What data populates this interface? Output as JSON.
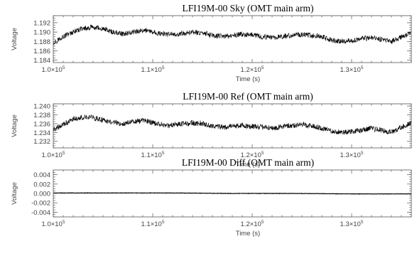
{
  "chart_data": [
    {
      "type": "line",
      "title": "LFI19M-00 Sky (OMT main arm)",
      "xlabel": "Time (s)",
      "ylabel": "Voltage",
      "xlim": [
        100000,
        136000
      ],
      "ylim": [
        1.1835,
        1.1935
      ],
      "x_ticks": [
        100000,
        110000,
        120000,
        130000
      ],
      "x_tick_labels": [
        {
          "mant": "1.0×10",
          "exp": "5"
        },
        {
          "mant": "1.1×10",
          "exp": "5"
        },
        {
          "mant": "1.2×10",
          "exp": "5"
        },
        {
          "mant": "1.3×10",
          "exp": "5"
        }
      ],
      "y_ticks": [
        1.184,
        1.186,
        1.188,
        1.19,
        1.192
      ],
      "y_tick_labels": [
        "1.184",
        "1.186",
        "1.188",
        "1.190",
        "1.192"
      ],
      "series": [
        {
          "x": [
            100000,
            101000,
            102000,
            103000,
            104000,
            105000,
            106000,
            107000,
            108000,
            109000,
            110000,
            111000,
            112000,
            113000,
            114000,
            115000,
            116000,
            117000,
            118000,
            119000,
            120000,
            121000,
            122000,
            123000,
            124000,
            125000,
            126000,
            127000,
            128000,
            129000,
            130000,
            131000,
            132000,
            133000,
            134000,
            135000,
            136000
          ],
          "y": [
            1.1878,
            1.189,
            1.19,
            1.1907,
            1.191,
            1.1906,
            1.19,
            1.1896,
            1.19,
            1.1904,
            1.19,
            1.1896,
            1.1894,
            1.1897,
            1.19,
            1.1898,
            1.1893,
            1.189,
            1.1893,
            1.1895,
            1.1893,
            1.189,
            1.1888,
            1.1891,
            1.1893,
            1.1895,
            1.1893,
            1.1889,
            1.1883,
            1.188,
            1.1882,
            1.1886,
            1.1889,
            1.1885,
            1.188,
            1.189,
            1.1898
          ],
          "noise": 0.0011
        }
      ]
    },
    {
      "type": "line",
      "title": "LFI19M-00 Ref (OMT main arm)",
      "xlabel": "Time (s)",
      "ylabel": "Voltage",
      "xlim": [
        100000,
        136000
      ],
      "ylim": [
        1.2305,
        1.2405
      ],
      "x_ticks": [
        100000,
        110000,
        120000,
        130000
      ],
      "x_tick_labels": [
        {
          "mant": "1.0×10",
          "exp": "5"
        },
        {
          "mant": "1.1×10",
          "exp": "5"
        },
        {
          "mant": "1.2×10",
          "exp": "5"
        },
        {
          "mant": "1.3×10",
          "exp": "5"
        }
      ],
      "y_ticks": [
        1.232,
        1.234,
        1.236,
        1.238,
        1.24
      ],
      "y_tick_labels": [
        "1.232",
        "1.234",
        "1.236",
        "1.238",
        "1.240"
      ],
      "series": [
        {
          "x": [
            100000,
            101000,
            102000,
            103000,
            104000,
            105000,
            106000,
            107000,
            108000,
            109000,
            110000,
            111000,
            112000,
            113000,
            114000,
            115000,
            116000,
            117000,
            118000,
            119000,
            120000,
            121000,
            122000,
            123000,
            124000,
            125000,
            126000,
            127000,
            128000,
            129000,
            130000,
            131000,
            132000,
            133000,
            134000,
            135000,
            136000
          ],
          "y": [
            1.2345,
            1.2358,
            1.237,
            1.2375,
            1.2374,
            1.2368,
            1.2362,
            1.236,
            1.2364,
            1.2367,
            1.2362,
            1.2358,
            1.2356,
            1.236,
            1.2362,
            1.236,
            1.2355,
            1.2352,
            1.2354,
            1.2356,
            1.2354,
            1.2352,
            1.235,
            1.2353,
            1.2356,
            1.2358,
            1.2355,
            1.235,
            1.2343,
            1.234,
            1.2342,
            1.2346,
            1.2349,
            1.2345,
            1.234,
            1.2352,
            1.2362
          ],
          "noise": 0.0012
        }
      ]
    },
    {
      "type": "line",
      "title": "LFI19M-00 Diff (OMT main arm)",
      "xlabel": "Time (s)",
      "ylabel": "Voltage",
      "xlim": [
        100000,
        136000
      ],
      "ylim": [
        -0.005,
        0.005
      ],
      "x_ticks": [
        100000,
        110000,
        120000,
        130000
      ],
      "x_tick_labels": [
        {
          "mant": "1.0×10",
          "exp": "5"
        },
        {
          "mant": "1.1×10",
          "exp": "5"
        },
        {
          "mant": "1.2×10",
          "exp": "5"
        },
        {
          "mant": "1.3×10",
          "exp": "5"
        }
      ],
      "y_ticks": [
        -0.004,
        -0.002,
        0.0,
        0.002,
        0.004
      ],
      "y_tick_labels": [
        "-0.004",
        "-0.002",
        "0.000",
        "0.002",
        "0.004"
      ],
      "series": [
        {
          "x": [
            100000,
            106000,
            112000,
            118000,
            124000,
            130000,
            136000
          ],
          "y": [
            0.0001,
            0.0001,
            0.0001,
            0.0,
            0.0,
            -0.0001,
            -0.0001
          ],
          "noise": 8e-05
        }
      ]
    }
  ]
}
